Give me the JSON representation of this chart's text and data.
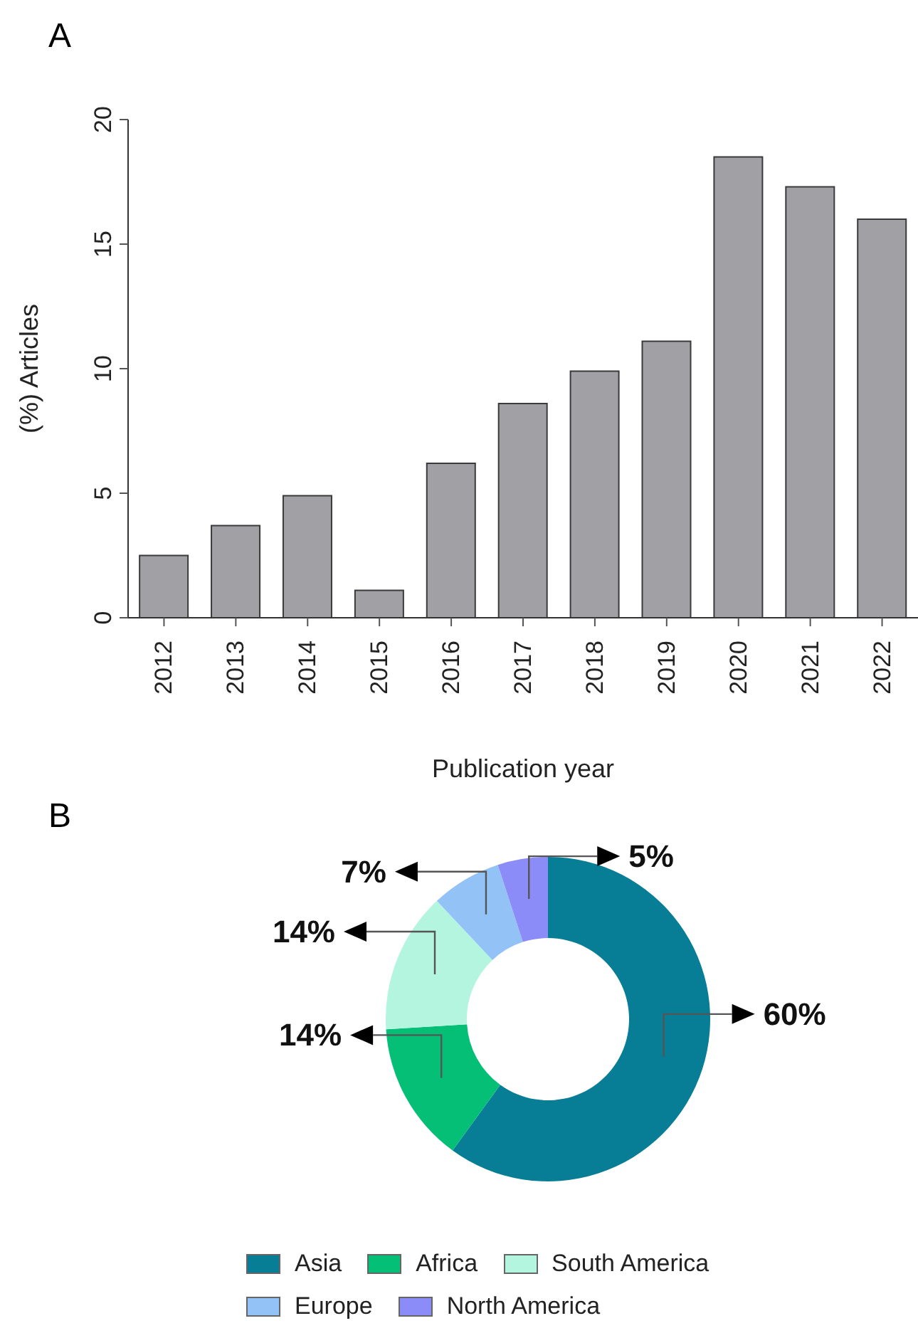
{
  "chart_data": [
    {
      "type": "bar",
      "title": "A",
      "xlabel": "Publication year",
      "ylabel": "(%) Articles",
      "categories": [
        "2012",
        "2013",
        "2014",
        "2015",
        "2016",
        "2017",
        "2018",
        "2019",
        "2020",
        "2021",
        "2022"
      ],
      "values": [
        2.5,
        3.7,
        4.9,
        1.1,
        6.2,
        8.6,
        9.9,
        11.1,
        18.5,
        17.3,
        16.0
      ],
      "color": "#a1a0a5",
      "ylim": [
        0,
        20
      ],
      "yticks": [
        0,
        5,
        10,
        15,
        20
      ]
    },
    {
      "type": "donut",
      "title": "B",
      "categories": [
        "Asia",
        "Africa",
        "South America",
        "Europe",
        "North America"
      ],
      "values": [
        60,
        14,
        14,
        7,
        5
      ],
      "colors": [
        "#077d96",
        "#06bf77",
        "#b3f5de",
        "#93c2f7",
        "#8c8cf8"
      ],
      "value_labels": [
        "60%",
        "14%",
        "14%",
        "7%",
        "5%"
      ],
      "legend": "bottom"
    }
  ]
}
